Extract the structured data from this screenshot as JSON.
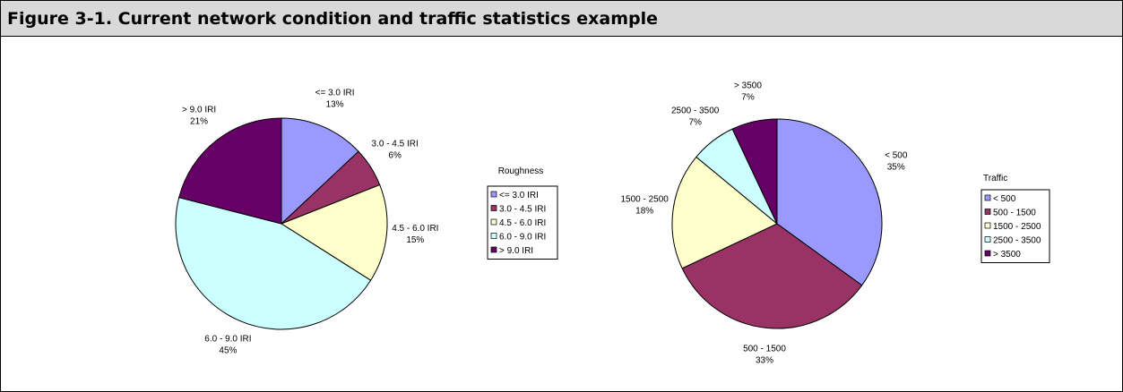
{
  "title": "Figure 3-1. Current network condition and traffic statistics example",
  "chart_data": [
    {
      "type": "pie",
      "title": "Roughness",
      "categories": [
        "<= 3.0 IRI",
        "3.0 - 4.5 IRI",
        "4.5 - 6.0 IRI",
        "6.0 - 9.0 IRI",
        "> 9.0 IRI"
      ],
      "values": [
        13,
        6,
        15,
        45,
        21
      ],
      "value_labels": [
        "13%",
        "6%",
        "15%",
        "45%",
        "21%"
      ],
      "colors": [
        "#9999ff",
        "#993366",
        "#ffffcc",
        "#ccffff",
        "#660066"
      ]
    },
    {
      "type": "pie",
      "title": "Traffic",
      "categories": [
        "< 500",
        "500 - 1500",
        "1500 - 2500",
        "2500 - 3500",
        "> 3500"
      ],
      "values": [
        35,
        33,
        18,
        7,
        7
      ],
      "value_labels": [
        "35%",
        "33%",
        "18%",
        "7%",
        "7%"
      ],
      "colors": [
        "#9999ff",
        "#993366",
        "#ffffcc",
        "#ccffff",
        "#660066"
      ]
    }
  ]
}
